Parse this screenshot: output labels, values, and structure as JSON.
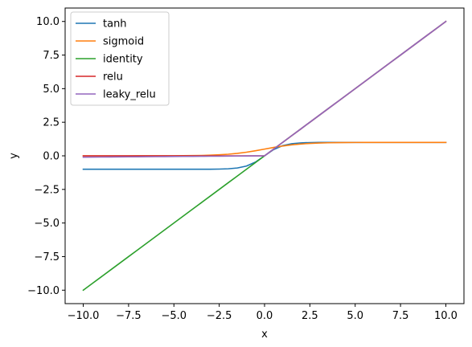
{
  "chart_data": {
    "type": "line",
    "title": "",
    "xlabel": "x",
    "ylabel": "y",
    "xlim": [
      -11.0,
      11.0
    ],
    "ylim": [
      -11.0,
      11.0
    ],
    "x_ticks": [
      -10.0,
      -7.5,
      -5.0,
      -2.5,
      0.0,
      2.5,
      5.0,
      7.5,
      10.0
    ],
    "x_tick_labels": [
      "−10.0",
      "−7.5",
      "−5.0",
      "−2.5",
      "0.0",
      "2.5",
      "5.0",
      "7.5",
      "10.0"
    ],
    "y_ticks": [
      -10.0,
      -7.5,
      -5.0,
      -2.5,
      0.0,
      2.5,
      5.0,
      7.5,
      10.0
    ],
    "y_tick_labels": [
      "−10.0",
      "−7.5",
      "−5.0",
      "−2.5",
      "0.0",
      "2.5",
      "5.0",
      "7.5",
      "10.0"
    ],
    "grid": false,
    "legend_position": "top-left",
    "x": [
      -10,
      -9.5,
      -9,
      -8.5,
      -8,
      -7.5,
      -7,
      -6.5,
      -6,
      -5.5,
      -5,
      -4.5,
      -4,
      -3.5,
      -3,
      -2.5,
      -2,
      -1.5,
      -1,
      -0.5,
      0,
      0.5,
      1,
      1.5,
      2,
      2.5,
      3,
      3.5,
      4,
      4.5,
      5,
      5.5,
      6,
      6.5,
      7,
      7.5,
      8,
      8.5,
      9,
      9.5,
      10
    ],
    "series": [
      {
        "name": "tanh",
        "color": "#1f77b4",
        "values": [
          -1.0,
          -1.0,
          -1.0,
          -1.0,
          -1.0,
          -1.0,
          -1.0,
          -1.0,
          -1.0,
          -1.0,
          -0.9999,
          -0.9998,
          -0.9993,
          -0.9982,
          -0.9951,
          -0.9866,
          -0.964,
          -0.9051,
          -0.7616,
          -0.4621,
          0.0,
          0.4621,
          0.7616,
          0.9051,
          0.964,
          0.9866,
          0.9951,
          0.9982,
          0.9993,
          0.9998,
          0.9999,
          1.0,
          1.0,
          1.0,
          1.0,
          1.0,
          1.0,
          1.0,
          1.0,
          1.0,
          1.0
        ]
      },
      {
        "name": "sigmoid",
        "color": "#ff7f0e",
        "values": [
          0.0,
          0.0001,
          0.0001,
          0.0002,
          0.0003,
          0.0006,
          0.0009,
          0.0015,
          0.0025,
          0.0041,
          0.0067,
          0.011,
          0.018,
          0.0293,
          0.0474,
          0.0759,
          0.1192,
          0.1824,
          0.2689,
          0.3775,
          0.5,
          0.6225,
          0.7311,
          0.8176,
          0.8808,
          0.9241,
          0.9526,
          0.9707,
          0.982,
          0.989,
          0.9933,
          0.9959,
          0.9975,
          0.9985,
          0.9991,
          0.9994,
          0.9997,
          0.9998,
          0.9999,
          0.9999,
          1.0
        ]
      },
      {
        "name": "identity",
        "color": "#2ca02c",
        "values": [
          -10,
          -9.5,
          -9,
          -8.5,
          -8,
          -7.5,
          -7,
          -6.5,
          -6,
          -5.5,
          -5,
          -4.5,
          -4,
          -3.5,
          -3,
          -2.5,
          -2,
          -1.5,
          -1,
          -0.5,
          0,
          0.5,
          1,
          1.5,
          2,
          2.5,
          3,
          3.5,
          4,
          4.5,
          5,
          5.5,
          6,
          6.5,
          7,
          7.5,
          8,
          8.5,
          9,
          9.5,
          10
        ]
      },
      {
        "name": "relu",
        "color": "#d62728",
        "values": [
          0,
          0,
          0,
          0,
          0,
          0,
          0,
          0,
          0,
          0,
          0,
          0,
          0,
          0,
          0,
          0,
          0,
          0,
          0,
          0,
          0,
          0.5,
          1,
          1.5,
          2,
          2.5,
          3,
          3.5,
          4,
          4.5,
          5,
          5.5,
          6,
          6.5,
          7,
          7.5,
          8,
          8.5,
          9,
          9.5,
          10
        ]
      },
      {
        "name": "leaky_relu",
        "color": "#9467bd",
        "values": [
          -0.1,
          -0.095,
          -0.09,
          -0.085,
          -0.08,
          -0.075,
          -0.07,
          -0.065,
          -0.06,
          -0.055,
          -0.05,
          -0.045,
          -0.04,
          -0.035,
          -0.03,
          -0.025,
          -0.02,
          -0.015,
          -0.01,
          -0.005,
          0,
          0.5,
          1,
          1.5,
          2,
          2.5,
          3,
          3.5,
          4,
          4.5,
          5,
          5.5,
          6,
          6.5,
          7,
          7.5,
          8,
          8.5,
          9,
          9.5,
          10
        ]
      }
    ]
  }
}
